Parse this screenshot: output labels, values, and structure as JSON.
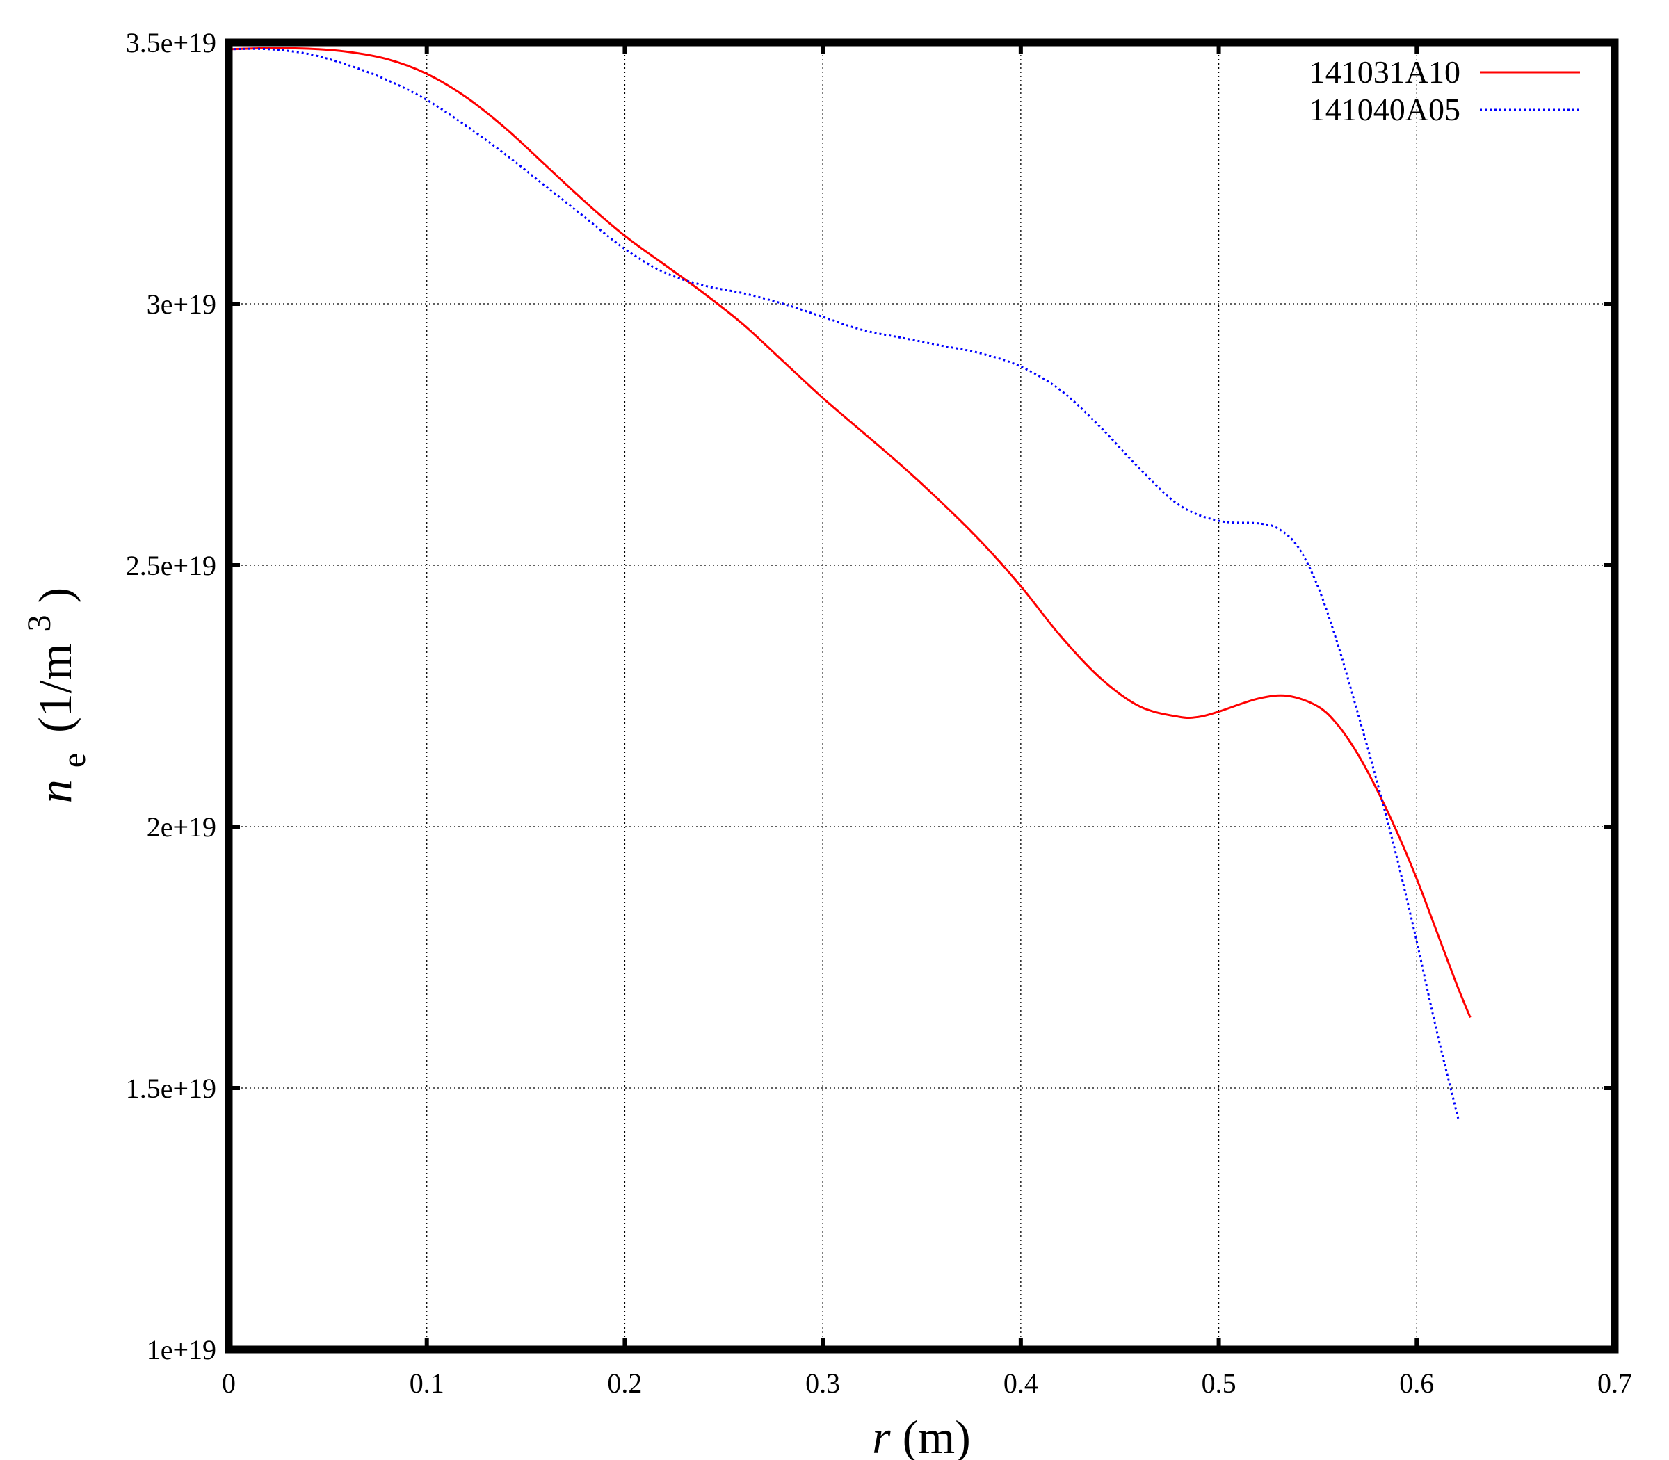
{
  "chart_data": {
    "type": "line",
    "xlabel": {
      "var": "r",
      "unit": "(m)"
    },
    "ylabel": {
      "var": "n",
      "sub": "e",
      "unit_pre": "(1/m",
      "sup": "3",
      "unit_post": ")"
    },
    "xlim": [
      0,
      0.7
    ],
    "ylim": [
      1e+19,
      3.5e+19
    ],
    "xticks": [
      0,
      0.1,
      0.2,
      0.3,
      0.4,
      0.5,
      0.6,
      0.7
    ],
    "xtick_labels": [
      "0",
      "0.1",
      "0.2",
      "0.3",
      "0.4",
      "0.5",
      "0.6",
      "0.7"
    ],
    "yticks": [
      1e+19,
      1.5e+19,
      2e+19,
      2.5e+19,
      3e+19,
      3.5e+19
    ],
    "ytick_labels": [
      "1e+19",
      "1.5e+19",
      "2e+19",
      "2.5e+19",
      "3e+19",
      "3.5e+19"
    ],
    "grid": true,
    "legend_position": "top-right",
    "series": [
      {
        "name": "141031A10",
        "color": "#ff0000",
        "style": "solid",
        "x": [
          0,
          0.02,
          0.04,
          0.06,
          0.08,
          0.1,
          0.12,
          0.14,
          0.16,
          0.18,
          0.2,
          0.22,
          0.24,
          0.26,
          0.28,
          0.3,
          0.32,
          0.34,
          0.36,
          0.38,
          0.4,
          0.42,
          0.44,
          0.46,
          0.48,
          0.49,
          0.5,
          0.52,
          0.535,
          0.55,
          0.56,
          0.57,
          0.58,
          0.59,
          0.6,
          0.61,
          0.62,
          0.627
        ],
        "y": [
          3.487e+19,
          3.489e+19,
          3.488e+19,
          3.482e+19,
          3.468e+19,
          3.44e+19,
          3.395e+19,
          3.335e+19,
          3.265e+19,
          3.195e+19,
          3.13e+19,
          3.075e+19,
          3.02e+19,
          2.96e+19,
          2.89e+19,
          2.82e+19,
          2.755e+19,
          2.69e+19,
          2.62e+19,
          2.545e+19,
          2.46e+19,
          2.365e+19,
          2.285e+19,
          2.23e+19,
          2.21e+19,
          2.21e+19,
          2.22e+19,
          2.245e+19,
          2.25e+19,
          2.23e+19,
          2.195e+19,
          2.14e+19,
          2.07e+19,
          1.99e+19,
          1.9e+19,
          1.8e+19,
          1.7e+19,
          1.635e+19
        ]
      },
      {
        "name": "141040A05",
        "color": "#0000ff",
        "style": "dotted",
        "x": [
          0,
          0.02,
          0.04,
          0.06,
          0.08,
          0.1,
          0.12,
          0.14,
          0.16,
          0.18,
          0.2,
          0.22,
          0.24,
          0.26,
          0.28,
          0.3,
          0.32,
          0.34,
          0.36,
          0.38,
          0.4,
          0.42,
          0.44,
          0.46,
          0.48,
          0.5,
          0.52,
          0.53,
          0.54,
          0.55,
          0.56,
          0.57,
          0.58,
          0.59,
          0.6,
          0.61,
          0.621
        ],
        "y": [
          3.487e+19,
          3.487e+19,
          3.478e+19,
          3.457e+19,
          3.428e+19,
          3.39e+19,
          3.34e+19,
          3.285e+19,
          3.225e+19,
          3.165e+19,
          3.105e+19,
          3.06e+19,
          3.035e+19,
          3.02e+19,
          3e+19,
          2.975e+19,
          2.95e+19,
          2.935e+19,
          2.92e+19,
          2.905e+19,
          2.88e+19,
          2.835e+19,
          2.765e+19,
          2.685e+19,
          2.615e+19,
          2.585e+19,
          2.58e+19,
          2.57e+19,
          2.535e+19,
          2.46e+19,
          2.35e+19,
          2.22e+19,
          2.085e+19,
          1.94e+19,
          1.78e+19,
          1.61e+19,
          1.44e+19
        ]
      }
    ]
  }
}
